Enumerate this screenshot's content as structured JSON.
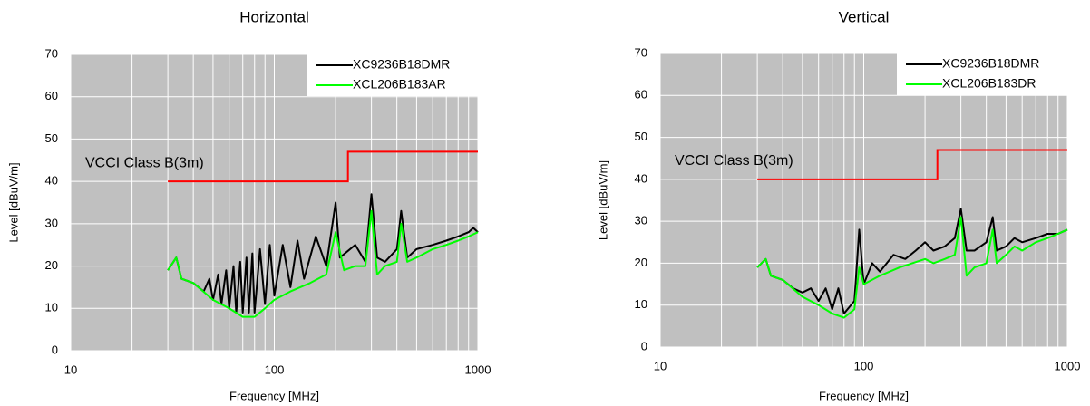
{
  "chart_data": [
    {
      "type": "line",
      "title": "Horizontal",
      "xlabel": "Frequency [MHz]",
      "ylabel": "Level [dBuV/m]",
      "xscale": "log",
      "xlim": [
        10,
        1000
      ],
      "ylim": [
        0,
        70
      ],
      "xticks": [
        10,
        100,
        1000
      ],
      "yticks": [
        0,
        10,
        20,
        30,
        40,
        50,
        60,
        70
      ],
      "xgrid_minor": [
        20,
        30,
        40,
        50,
        60,
        70,
        80,
        90,
        200,
        300,
        400,
        500,
        600,
        700,
        800,
        900
      ],
      "grid": true,
      "legend": "upper right",
      "series": [
        {
          "name": "XC9236B18DMR",
          "color": "#000000",
          "x": [
            30,
            33,
            35,
            40,
            45,
            48,
            50,
            53,
            55,
            58,
            60,
            63,
            65,
            68,
            70,
            73,
            75,
            78,
            80,
            85,
            90,
            95,
            100,
            110,
            120,
            130,
            140,
            160,
            180,
            200,
            210,
            250,
            280,
            300,
            320,
            350,
            400,
            420,
            450,
            500,
            600,
            700,
            800,
            900,
            950,
            1000
          ],
          "values": [
            19,
            22,
            17,
            16,
            14,
            17,
            12,
            18,
            11,
            19,
            10,
            20,
            9,
            21,
            9,
            22,
            9,
            23,
            9,
            24,
            11,
            25,
            13,
            25,
            15,
            26,
            17,
            27,
            20,
            35,
            22,
            25,
            21,
            37,
            22,
            21,
            24,
            33,
            22,
            24,
            25,
            26,
            27,
            28,
            29,
            28
          ]
        },
        {
          "name": "XCL206B183AR",
          "color": "#00ff00",
          "x": [
            30,
            33,
            35,
            40,
            50,
            60,
            70,
            80,
            90,
            100,
            120,
            150,
            180,
            200,
            220,
            250,
            280,
            300,
            320,
            350,
            400,
            420,
            450,
            500,
            600,
            700,
            800,
            900,
            1000
          ],
          "values": [
            19,
            22,
            17,
            16,
            12,
            10,
            8,
            8,
            10,
            12,
            14,
            16,
            18,
            28,
            19,
            20,
            20,
            33,
            18,
            20,
            21,
            30,
            21,
            22,
            24,
            25,
            26,
            27,
            28
          ]
        }
      ],
      "limit_line": {
        "label": "VCCI Class B(3m)",
        "color": "#ff0000",
        "x": [
          30,
          230,
          230,
          1000
        ],
        "values": [
          40,
          40,
          47,
          47
        ]
      }
    },
    {
      "type": "line",
      "title": "Vertical",
      "xlabel": "Frequency [MHz]",
      "ylabel": "Level [dBuV/m]",
      "xscale": "log",
      "xlim": [
        10,
        1000
      ],
      "ylim": [
        0,
        70
      ],
      "xticks": [
        10,
        100,
        1000
      ],
      "yticks": [
        0,
        10,
        20,
        30,
        40,
        50,
        60,
        70
      ],
      "xgrid_minor": [
        20,
        30,
        40,
        50,
        60,
        70,
        80,
        90,
        200,
        300,
        400,
        500,
        600,
        700,
        800,
        900
      ],
      "grid": true,
      "legend": "upper right",
      "series": [
        {
          "name": "XC9236B18DMR",
          "color": "#000000",
          "x": [
            30,
            33,
            35,
            40,
            45,
            50,
            55,
            60,
            65,
            70,
            75,
            80,
            90,
            95,
            100,
            110,
            120,
            140,
            160,
            180,
            200,
            220,
            250,
            280,
            300,
            320,
            350,
            400,
            430,
            450,
            500,
            550,
            600,
            700,
            800,
            900,
            1000
          ],
          "values": [
            19,
            21,
            17,
            16,
            14,
            13,
            14,
            11,
            14,
            9,
            14,
            8,
            11,
            28,
            15,
            20,
            18,
            22,
            21,
            23,
            25,
            23,
            24,
            26,
            33,
            23,
            23,
            25,
            31,
            23,
            24,
            26,
            25,
            26,
            27,
            27,
            28
          ]
        },
        {
          "name": "XCL206B183DR",
          "color": "#00ff00",
          "x": [
            30,
            33,
            35,
            40,
            50,
            60,
            70,
            80,
            90,
            95,
            100,
            120,
            150,
            200,
            220,
            250,
            280,
            300,
            320,
            350,
            400,
            430,
            450,
            500,
            550,
            600,
            700,
            800,
            900,
            1000
          ],
          "values": [
            19,
            21,
            17,
            16,
            12,
            10,
            8,
            7,
            9,
            19,
            15,
            17,
            19,
            21,
            20,
            21,
            22,
            31,
            17,
            19,
            20,
            28,
            20,
            22,
            24,
            23,
            25,
            26,
            27,
            28
          ]
        }
      ],
      "limit_line": {
        "label": "VCCI Class B(3m)",
        "color": "#ff0000",
        "x": [
          30,
          230,
          230,
          1000
        ],
        "values": [
          40,
          40,
          47,
          47
        ]
      }
    }
  ]
}
